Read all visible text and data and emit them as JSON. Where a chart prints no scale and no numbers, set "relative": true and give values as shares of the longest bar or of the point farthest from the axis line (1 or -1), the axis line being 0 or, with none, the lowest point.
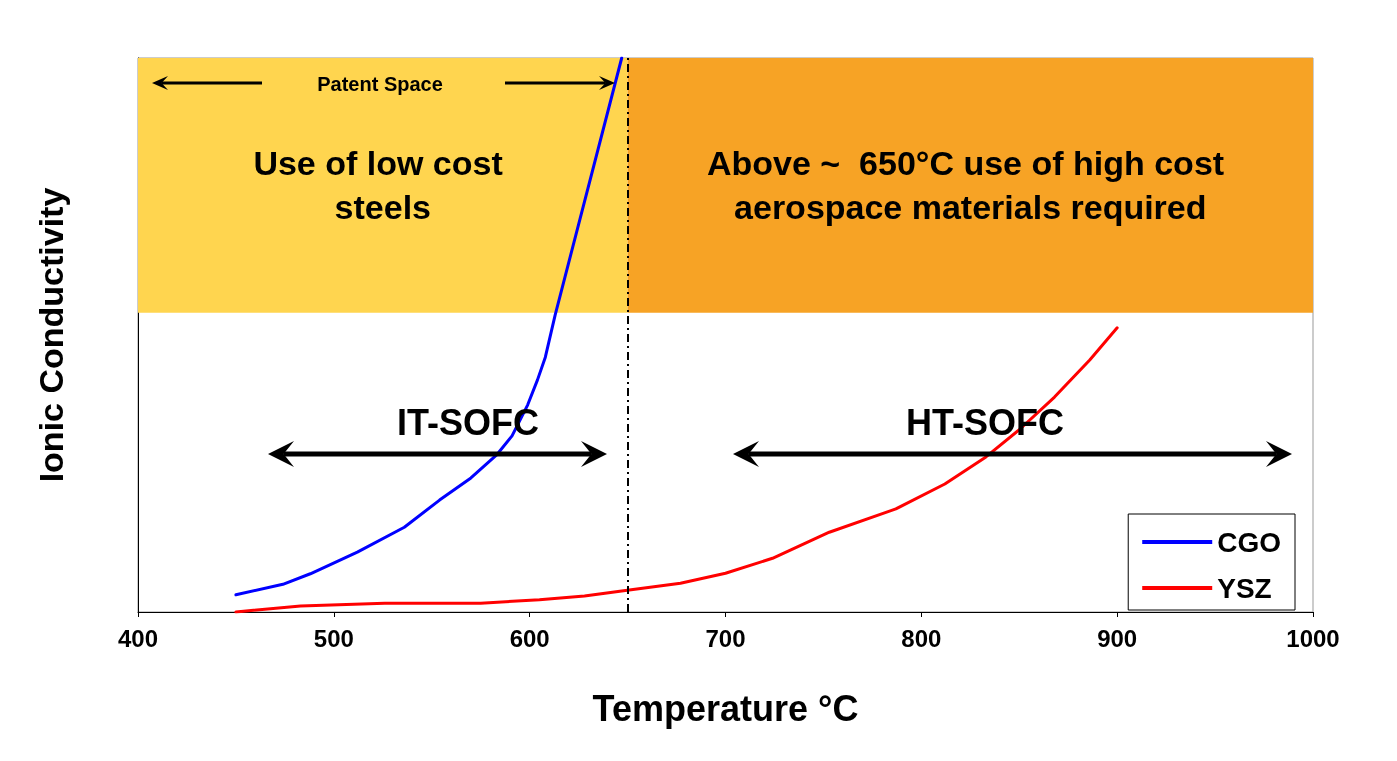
{
  "chart_data": {
    "type": "line",
    "relative": true,
    "xlabel": "Temperature °C",
    "ylabel": "Ionic Conductivity",
    "xlim": [
      400,
      1000
    ],
    "xticks": [
      400,
      500,
      600,
      700,
      800,
      900,
      1000
    ],
    "tick_labels": "x",
    "grid": false,
    "legend": "bottom right",
    "marker": "none",
    "line_style": "solid",
    "series": [
      {
        "name": "CGO",
        "color": "#0000ff",
        "x": [
          450,
          474,
          488,
          512,
          536,
          554,
          570,
          583,
          591,
          599,
          604,
          608,
          613,
          647
        ],
        "values": [
          0.031,
          0.05,
          0.069,
          0.108,
          0.153,
          0.202,
          0.242,
          0.283,
          0.318,
          0.374,
          0.419,
          0.46,
          0.536,
          1
        ]
      },
      {
        "name": "YSZ",
        "color": "#ff0000",
        "x": [
          450,
          483,
          526,
          575,
          605,
          628,
          647,
          677,
          700,
          724,
          753,
          787,
          812,
          833,
          850,
          868,
          886,
          900
        ],
        "values": [
          0,
          0.011,
          0.016,
          0.016,
          0.022,
          0.029,
          0.038,
          0.052,
          0.07,
          0.097,
          0.144,
          0.186,
          0.231,
          0.28,
          0.329,
          0.388,
          0.455,
          0.513
        ]
      }
    ],
    "ref_lines": [
      {
        "axis": "x",
        "value": 650,
        "color": "#000000",
        "line_style": "dashed"
      }
    ],
    "bands": [
      {
        "axis": "x",
        "from": 400,
        "to": 650,
        "label": "Use of low cost steels",
        "color": "#ffd54f"
      },
      {
        "axis": "x",
        "from": 650,
        "to": 1000,
        "label": "Above ~  650°C use of high cost aerospace materials required",
        "color": "#f7a325"
      }
    ],
    "annotations": [
      "Patent Space",
      "IT-SOFC",
      "HT-SOFC"
    ]
  }
}
